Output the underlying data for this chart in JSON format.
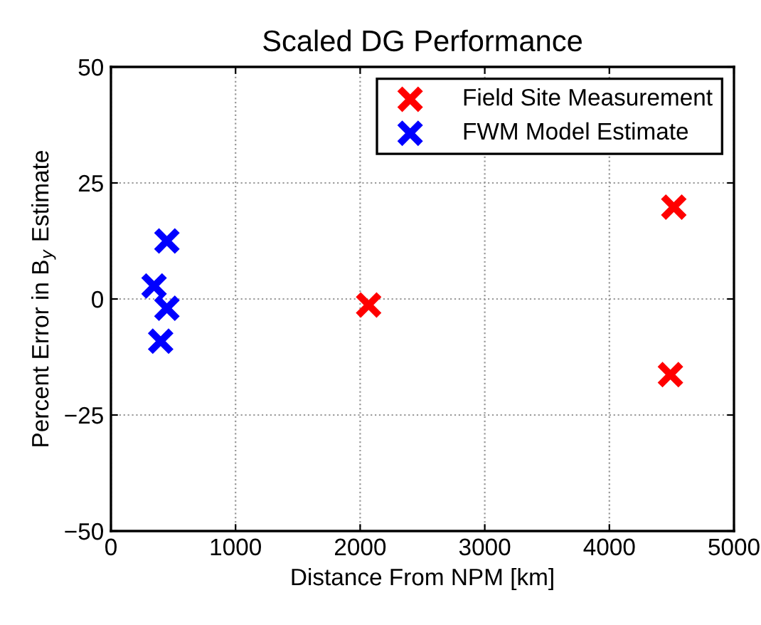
{
  "chart_data": {
    "type": "scatter",
    "title": "Scaled DG Performance",
    "xlabel": "Distance From NPM [km]",
    "ylabel": "Percent Error in B$_{y}$ Estimate",
    "series": [
      {
        "name": "Field Site Measurement",
        "color": "#ff0000",
        "x": [
          2068,
          4517,
          4490
        ],
        "values": [
          -1.3,
          19.8,
          -16.3
        ]
      },
      {
        "name": "FWM Model Estimate",
        "color": "#0000ff",
        "x": [
          449,
          346,
          449,
          399
        ],
        "values": [
          12.5,
          2.8,
          -2.0,
          -9.1
        ]
      }
    ],
    "xlim": [
      0,
      5000
    ],
    "xticks": [
      0,
      1000,
      2000,
      3000,
      4000,
      5000
    ],
    "ylim": [
      -50,
      50
    ],
    "yticks": [
      {
        "value": -50,
        "label": "−50"
      },
      {
        "value": -25,
        "label": "−25"
      },
      0,
      25,
      50
    ],
    "grid": true,
    "legend": "top right",
    "marker": "cross"
  }
}
